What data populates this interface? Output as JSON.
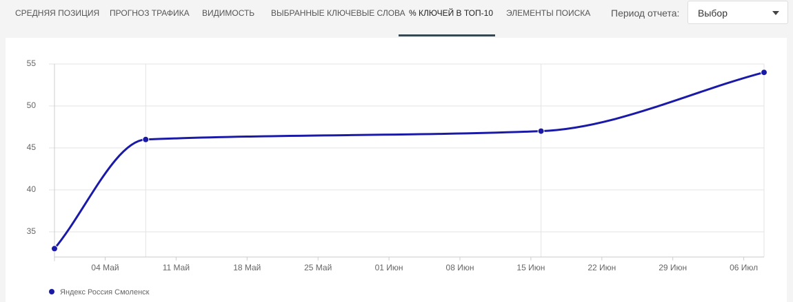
{
  "tabs": [
    "СРЕДНЯЯ ПОЗИЦИЯ",
    "ПРОГНОЗ ТРАФИКА",
    "ВИДИМОСТЬ",
    "ВЫБРАННЫЕ КЛЮЧЕВЫЕ СЛОВА",
    "% КЛЮЧЕЙ В ТОП-10",
    "ЭЛЕМЕНТЫ ПОИСКА"
  ],
  "active_tab": 4,
  "period_label": "Период отчета:",
  "period_select": "Выбор",
  "chart_data": {
    "type": "line",
    "x": [
      0,
      9,
      48,
      70
    ],
    "series": [
      {
        "name": "Яндекс Россия Смоленск",
        "color": "#1a1aa6",
        "values": [
          33,
          46,
          47,
          54
        ]
      }
    ],
    "xlim": [
      0,
      70
    ],
    "xticks": [
      {
        "value": 5,
        "label": "04 Май"
      },
      {
        "value": 12,
        "label": "11 Май"
      },
      {
        "value": 19,
        "label": "18 Май"
      },
      {
        "value": 26,
        "label": "25 Май"
      },
      {
        "value": 33,
        "label": "01 Июн"
      },
      {
        "value": 40,
        "label": "08 Июн"
      },
      {
        "value": 47,
        "label": "15 Июн"
      },
      {
        "value": 54,
        "label": "22 Июн"
      },
      {
        "value": 61,
        "label": "29 Июн"
      },
      {
        "value": 68,
        "label": "06 Июл"
      }
    ],
    "ylim": [
      32,
      55
    ],
    "yticks": [
      35,
      40,
      45,
      50,
      55
    ],
    "grid": true,
    "legend": "bottom-left"
  }
}
